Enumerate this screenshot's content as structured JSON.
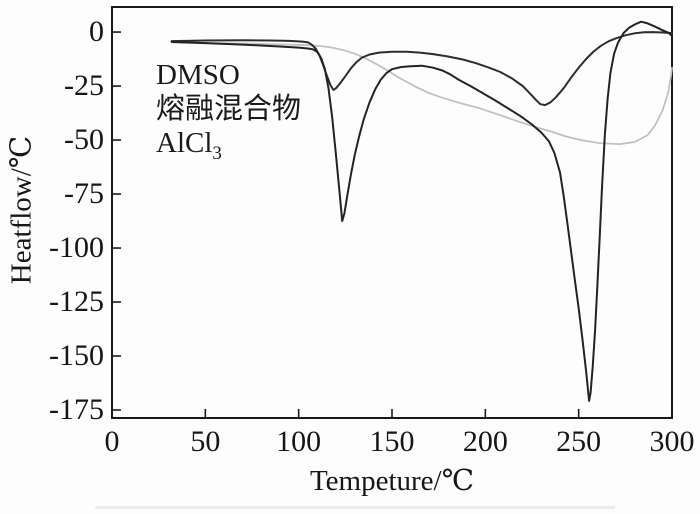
{
  "figure": {
    "background": "#fdfdfd",
    "axis_color": "#1a1a1a",
    "text_color": "#161616"
  },
  "legend": {
    "position": "upper-left",
    "items": [
      {
        "label": "DMSO"
      },
      {
        "label": "熔融混合物"
      },
      {
        "label": "AlCl",
        "subscript": "3"
      }
    ]
  },
  "chart_data": {
    "type": "line",
    "title": "",
    "xlabel": "Tempeture/℃",
    "ylabel": "Heatflow/℃",
    "xlim": [
      0,
      300
    ],
    "ylim": [
      -178.7,
      11.6
    ],
    "x_ticks": [
      0,
      50,
      100,
      150,
      200,
      250,
      300
    ],
    "y_ticks": [
      0,
      -25,
      -50,
      -75,
      -100,
      -125,
      -150,
      -175
    ],
    "grid": false,
    "legend_entries": [
      "DMSO",
      "熔融混合物",
      "AlCl3"
    ],
    "series": [
      {
        "id": "dmso",
        "name": "DMSO",
        "color": "#2d2d2d",
        "width": 2,
        "points": [
          [
            32,
            -4.2
          ],
          [
            50,
            -3.9
          ],
          [
            70,
            -3.8
          ],
          [
            85,
            -3.9
          ],
          [
            95,
            -4.1
          ],
          [
            102,
            -4.4
          ],
          [
            105,
            -4.8
          ],
          [
            107,
            -5.8
          ],
          [
            109,
            -7.5
          ],
          [
            111,
            -10.5
          ],
          [
            113,
            -15
          ],
          [
            115,
            -20
          ],
          [
            117,
            -24.5
          ],
          [
            118.6,
            -26.8
          ],
          [
            120,
            -26
          ],
          [
            122,
            -24
          ],
          [
            125,
            -20.5
          ],
          [
            128,
            -16.8
          ],
          [
            131,
            -13.9
          ],
          [
            134,
            -11.8
          ],
          [
            138,
            -10.4
          ],
          [
            143,
            -9.5
          ],
          [
            150,
            -9.1
          ],
          [
            158,
            -9.1
          ],
          [
            165,
            -9.5
          ],
          [
            172,
            -10.2
          ],
          [
            180,
            -11.3
          ],
          [
            188,
            -12.7
          ],
          [
            195,
            -14.4
          ],
          [
            202,
            -16.5
          ],
          [
            208,
            -18.5
          ],
          [
            214,
            -21.3
          ],
          [
            220,
            -25
          ],
          [
            224,
            -28.5
          ],
          [
            227,
            -31.3
          ],
          [
            229.5,
            -33.4
          ],
          [
            232,
            -33.8
          ],
          [
            235,
            -32.5
          ],
          [
            238,
            -30
          ],
          [
            242,
            -26
          ],
          [
            246,
            -21
          ],
          [
            250,
            -16.5
          ],
          [
            254,
            -12.5
          ],
          [
            258,
            -9
          ],
          [
            262,
            -6.3
          ],
          [
            266,
            -4.3
          ],
          [
            270,
            -2.9
          ],
          [
            275,
            -1.5
          ],
          [
            280,
            -0.6
          ],
          [
            285,
            -0.1
          ],
          [
            290,
            0
          ],
          [
            295,
            -0.2
          ],
          [
            300,
            -0.5
          ]
        ]
      },
      {
        "id": "melt-mixture",
        "name": "熔融混合物",
        "color": "#232323",
        "width": 2,
        "points": [
          [
            32,
            -4.6
          ],
          [
            50,
            -5.1
          ],
          [
            70,
            -5.8
          ],
          [
            90,
            -6.7
          ],
          [
            100,
            -7.2
          ],
          [
            105,
            -7.6
          ],
          [
            108,
            -8.1
          ],
          [
            110,
            -9.3
          ],
          [
            112,
            -12
          ],
          [
            114,
            -17
          ],
          [
            116,
            -26
          ],
          [
            118,
            -40
          ],
          [
            120,
            -57
          ],
          [
            122,
            -75
          ],
          [
            123.3,
            -87.5
          ],
          [
            124.5,
            -84
          ],
          [
            126,
            -76
          ],
          [
            128,
            -66
          ],
          [
            130,
            -57
          ],
          [
            132.5,
            -48
          ],
          [
            135,
            -40
          ],
          [
            138,
            -32.5
          ],
          [
            141,
            -26.5
          ],
          [
            144,
            -22
          ],
          [
            147,
            -19
          ],
          [
            150,
            -17.2
          ],
          [
            155,
            -16.2
          ],
          [
            160,
            -15.8
          ],
          [
            166,
            -15.6
          ],
          [
            172,
            -16.5
          ],
          [
            177,
            -17.8
          ],
          [
            181,
            -19.5
          ],
          [
            186,
            -22.2
          ],
          [
            192,
            -25
          ],
          [
            197,
            -27.5
          ],
          [
            205,
            -31.5
          ],
          [
            212,
            -35.2
          ],
          [
            219,
            -39
          ],
          [
            225,
            -42.8
          ],
          [
            230,
            -46.5
          ],
          [
            234,
            -50.5
          ],
          [
            237,
            -56
          ],
          [
            240,
            -65
          ],
          [
            242,
            -76
          ],
          [
            244,
            -89
          ],
          [
            246,
            -102
          ],
          [
            248,
            -115
          ],
          [
            250,
            -128
          ],
          [
            252,
            -142
          ],
          [
            254,
            -157
          ],
          [
            255.6,
            -170.8
          ],
          [
            256.4,
            -167
          ],
          [
            257.5,
            -155
          ],
          [
            258.8,
            -138
          ],
          [
            260,
            -118
          ],
          [
            261.2,
            -96
          ],
          [
            262.5,
            -72
          ],
          [
            264,
            -48
          ],
          [
            265.5,
            -31
          ],
          [
            267,
            -19
          ],
          [
            269,
            -10
          ],
          [
            271,
            -5
          ],
          [
            274,
            -0.5
          ],
          [
            277,
            2
          ],
          [
            280,
            3.5
          ],
          [
            283.5,
            4.8
          ],
          [
            287,
            4
          ],
          [
            291,
            2.5
          ],
          [
            295,
            0.8
          ],
          [
            298,
            -0.3
          ],
          [
            300,
            -1.8
          ]
        ]
      },
      {
        "id": "alcl3",
        "name": "AlCl3",
        "color": "#c1c1c1",
        "width": 1.8,
        "points": [
          [
            33,
            -4.8
          ],
          [
            55,
            -5.1
          ],
          [
            75,
            -5.4
          ],
          [
            95,
            -5.8
          ],
          [
            105,
            -6.1
          ],
          [
            112,
            -6.5
          ],
          [
            118,
            -7.2
          ],
          [
            124,
            -8.4
          ],
          [
            130,
            -10
          ],
          [
            136,
            -12.3
          ],
          [
            142,
            -15
          ],
          [
            148,
            -18
          ],
          [
            153,
            -20.8
          ],
          [
            158,
            -23.1
          ],
          [
            163,
            -25.5
          ],
          [
            170,
            -28.3
          ],
          [
            177,
            -30.4
          ],
          [
            186,
            -32.8
          ],
          [
            197,
            -35.3
          ],
          [
            208,
            -38.5
          ],
          [
            218,
            -41.5
          ],
          [
            227,
            -44
          ],
          [
            235,
            -46
          ],
          [
            243,
            -48.3
          ],
          [
            251,
            -50
          ],
          [
            261,
            -51.4
          ],
          [
            272,
            -51.9
          ],
          [
            280,
            -50.9
          ],
          [
            287,
            -47.7
          ],
          [
            291,
            -43.1
          ],
          [
            295,
            -36.1
          ],
          [
            298,
            -27.8
          ],
          [
            299.5,
            -19.9
          ],
          [
            300,
            -16.5
          ]
        ]
      }
    ]
  }
}
